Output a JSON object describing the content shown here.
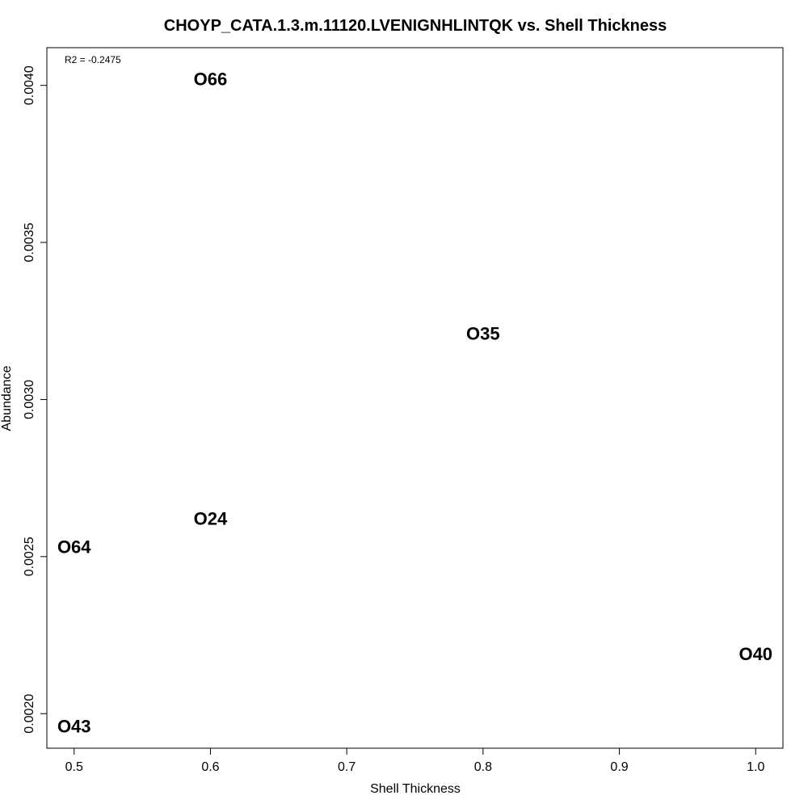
{
  "chart_data": {
    "type": "scatter",
    "title": "CHOYP_CATA.1.3.m.11120.LVENIGNHLINTQK vs. Shell Thickness",
    "xlabel": "Shell Thickness",
    "ylabel": "Abundance",
    "annotation": "R2 = -0.2475",
    "xlim": [
      0.48,
      1.02
    ],
    "ylim": [
      0.00189,
      0.00412
    ],
    "xticks": [
      0.5,
      0.6,
      0.7,
      0.8,
      0.9,
      1.0
    ],
    "xtick_labels": [
      "0.5",
      "0.6",
      "0.7",
      "0.8",
      "0.9",
      "1.0"
    ],
    "yticks": [
      0.002,
      0.0025,
      0.003,
      0.0035,
      0.004
    ],
    "ytick_labels": [
      "0.0020",
      "0.0025",
      "0.0030",
      "0.0035",
      "0.0040"
    ],
    "grid": false,
    "legend": "none",
    "points": [
      {
        "label": "O66",
        "x": 0.6,
        "y": 0.00402
      },
      {
        "label": "O35",
        "x": 0.8,
        "y": 0.00321
      },
      {
        "label": "O24",
        "x": 0.6,
        "y": 0.00262
      },
      {
        "label": "O64",
        "x": 0.5,
        "y": 0.00253
      },
      {
        "label": "O40",
        "x": 1.0,
        "y": 0.00219
      },
      {
        "label": "O43",
        "x": 0.5,
        "y": 0.00196
      }
    ]
  }
}
